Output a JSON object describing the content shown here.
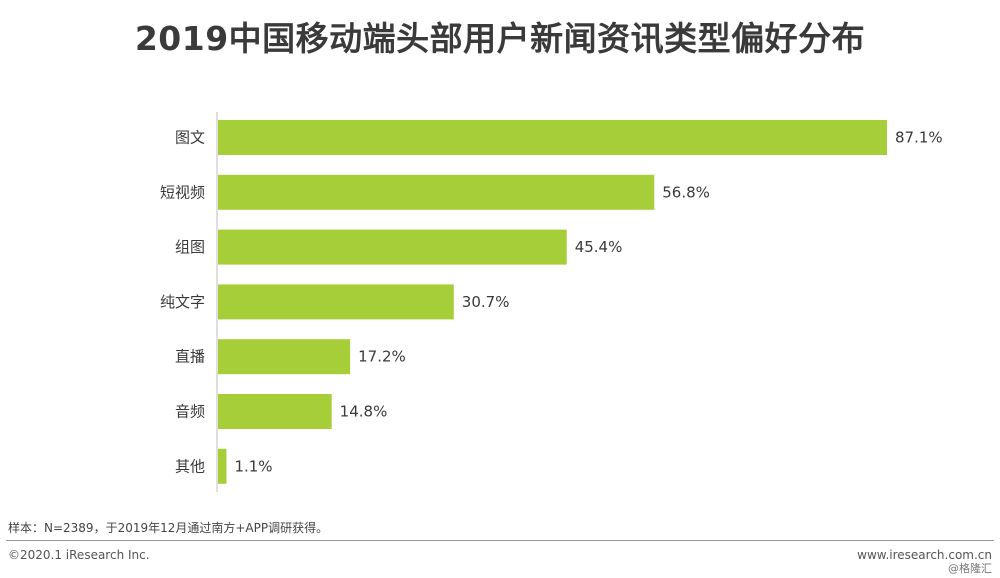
{
  "chart_data": {
    "type": "bar",
    "orientation": "horizontal",
    "title": "2019中国移动端头部用户新闻资讯类型偏好分布",
    "categories": [
      "图文",
      "短视频",
      "组图",
      "纯文字",
      "直播",
      "音频",
      "其他"
    ],
    "values": [
      87.1,
      56.8,
      45.4,
      30.7,
      17.2,
      14.8,
      1.1
    ],
    "value_labels": [
      "87.1%",
      "56.8%",
      "45.4%",
      "30.7%",
      "17.2%",
      "14.8%",
      "1.1%"
    ],
    "xlim": [
      0,
      100
    ],
    "bar_color": "#a6ce39",
    "grid": false,
    "legend": "none"
  },
  "note": "样本：N=2389，于2019年12月通过南方+APP调研获得。",
  "footer": {
    "copyright": "©2020.1 iResearch Inc.",
    "website": "www.iresearch.com.cn",
    "watermark": "@格隆汇"
  }
}
